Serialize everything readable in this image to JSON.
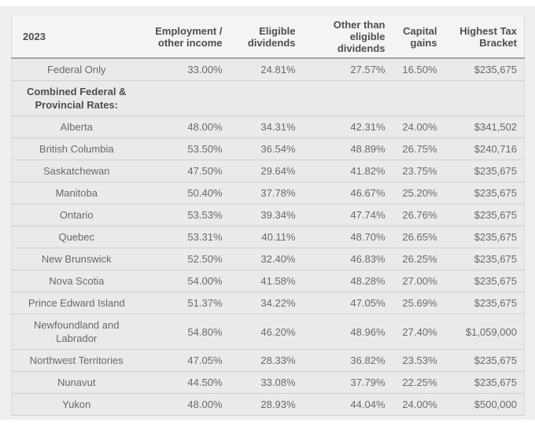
{
  "table": {
    "year_label": "2023",
    "columns": [
      "Employment / other income",
      "Eligible dividends",
      "Other than eligible dividends",
      "Capital gains",
      "Highest Tax Bracket"
    ],
    "section_label": "Combined Federal & Provincial Rates:",
    "rows": [
      {
        "label": "Federal Only",
        "values": [
          "33.00%",
          "24.81%",
          "27.57%",
          "16.50%",
          "$235,675"
        ]
      },
      {
        "label": "Alberta",
        "values": [
          "48.00%",
          "34.31%",
          "42.31%",
          "24.00%",
          "$341,502"
        ]
      },
      {
        "label": "British Columbia",
        "values": [
          "53.50%",
          "36.54%",
          "48.89%",
          "26.75%",
          "$240,716"
        ]
      },
      {
        "label": "Saskatchewan",
        "values": [
          "47.50%",
          "29.64%",
          "41.82%",
          "23.75%",
          "$235,675"
        ]
      },
      {
        "label": "Manitoba",
        "values": [
          "50.40%",
          "37.78%",
          "46.67%",
          "25.20%",
          "$235,675"
        ]
      },
      {
        "label": "Ontario",
        "values": [
          "53.53%",
          "39.34%",
          "47.74%",
          "26.76%",
          "$235,675"
        ]
      },
      {
        "label": "Quebec",
        "values": [
          "53.31%",
          "40.11%",
          "48.70%",
          "26.65%",
          "$235,675"
        ]
      },
      {
        "label": "New Brunswick",
        "values": [
          "52.50%",
          "32.40%",
          "46.83%",
          "26.25%",
          "$235,675"
        ]
      },
      {
        "label": "Nova Scotia",
        "values": [
          "54.00%",
          "41.58%",
          "48.28%",
          "27.00%",
          "$235,675"
        ]
      },
      {
        "label": "Prince Edward Island",
        "values": [
          "51.37%",
          "34.22%",
          "47.05%",
          "25.69%",
          "$235,675"
        ]
      },
      {
        "label": "Newfoundland and Labrador",
        "values": [
          "54.80%",
          "46.20%",
          "48.96%",
          "27.40%",
          "$1,059,000"
        ]
      },
      {
        "label": "Northwest Territories",
        "values": [
          "47.05%",
          "28.33%",
          "36.82%",
          "23.53%",
          "$235,675"
        ]
      },
      {
        "label": "Nunavut",
        "values": [
          "44.50%",
          "33.08%",
          "37.79%",
          "22.25%",
          "$235,675"
        ]
      },
      {
        "label": "Yukon",
        "values": [
          "48.00%",
          "28.93%",
          "44.04%",
          "24.00%",
          "$500,000"
        ]
      }
    ]
  },
  "colors": {
    "page_background": "#f0efee",
    "header_background": "#f5f4f3",
    "row_background": "#ebeae9",
    "header_text": "#4f4d4c",
    "body_text": "#6b6968",
    "row_divider": "#d2d0ce",
    "header_divider": "#a3a19f"
  }
}
